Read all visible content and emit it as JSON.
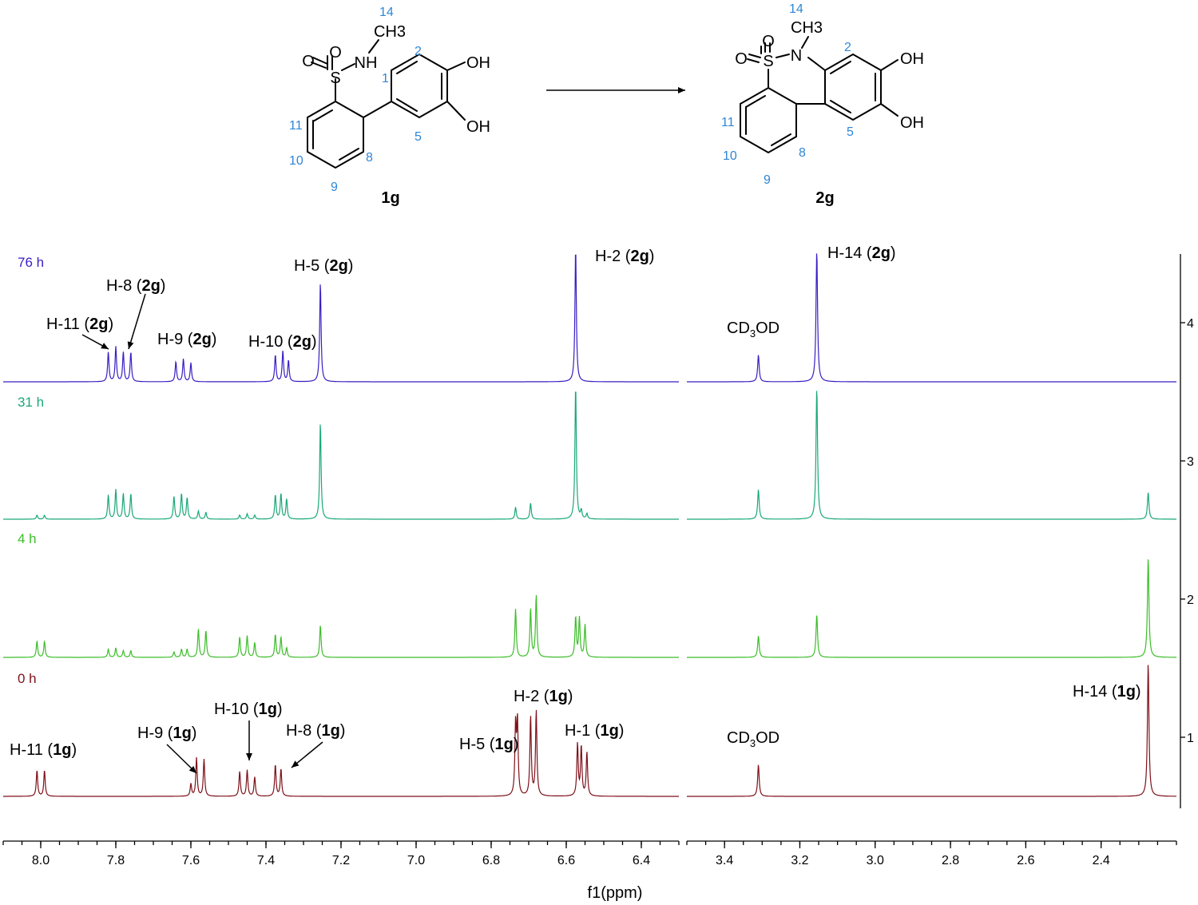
{
  "structures": {
    "reactant": {
      "compound": "1g",
      "atoms": {
        "oxygen": "O",
        "sulfur": "S",
        "nitrogen_h": "NH",
        "methyl": "CH3",
        "hydroxyl_a": "OH",
        "hydroxyl_b": "OH"
      },
      "positions": {
        "p14": "14",
        "p2": "2",
        "p1": "1",
        "p5": "5",
        "p11": "11",
        "p10": "10",
        "p9": "9",
        "p8": "8"
      }
    },
    "product": {
      "compound": "2g",
      "atoms": {
        "oxygen": "O",
        "sulfur": "S",
        "nitrogen": "N",
        "methyl": "CH3",
        "hydroxyl_a": "OH",
        "hydroxyl_b": "OH"
      },
      "positions": {
        "p14": "14",
        "p2": "2",
        "p11": "11",
        "p5": "5",
        "p10": "10",
        "p8": "8",
        "p9": "9"
      }
    }
  },
  "chart_data": {
    "type": "line",
    "subtype": "stacked NMR spectra with broken x-axis",
    "xlabel": "f1(ppm)",
    "x_reversed": true,
    "x_segments": [
      {
        "range": [
          8.1,
          6.3
        ],
        "ticks": [
          8.0,
          7.8,
          7.6,
          7.4,
          7.2,
          7.0,
          6.8,
          6.6,
          6.4
        ]
      },
      {
        "range": [
          3.5,
          2.2
        ],
        "ticks": [
          3.4,
          3.2,
          3.0,
          2.8,
          2.6,
          2.4
        ]
      }
    ],
    "right_axis": {
      "ticks": [
        "1",
        "2",
        "3",
        "4"
      ]
    },
    "series": [
      {
        "name": "76 h",
        "color": "#3a1ec3",
        "peaks": [
          [
            7.82,
            0.22
          ],
          [
            7.8,
            0.26
          ],
          [
            7.78,
            0.22
          ],
          [
            7.76,
            0.22
          ],
          [
            7.64,
            0.15
          ],
          [
            7.62,
            0.17
          ],
          [
            7.6,
            0.14
          ],
          [
            7.375,
            0.2
          ],
          [
            7.355,
            0.23
          ],
          [
            7.34,
            0.16
          ],
          [
            7.255,
            0.74
          ],
          [
            6.575,
            1.0
          ],
          [
            3.31,
            0.2
          ],
          [
            3.155,
            0.98
          ]
        ]
      },
      {
        "name": "31 h",
        "color": "#1aa878",
        "peaks": [
          [
            8.01,
            0.03
          ],
          [
            7.99,
            0.03
          ],
          [
            7.82,
            0.18
          ],
          [
            7.8,
            0.22
          ],
          [
            7.78,
            0.19
          ],
          [
            7.76,
            0.19
          ],
          [
            7.645,
            0.17
          ],
          [
            7.625,
            0.19
          ],
          [
            7.61,
            0.16
          ],
          [
            7.58,
            0.06
          ],
          [
            7.56,
            0.05
          ],
          [
            7.47,
            0.03
          ],
          [
            7.45,
            0.04
          ],
          [
            7.43,
            0.03
          ],
          [
            7.375,
            0.18
          ],
          [
            7.36,
            0.19
          ],
          [
            7.345,
            0.15
          ],
          [
            7.255,
            0.72
          ],
          [
            6.735,
            0.09
          ],
          [
            6.695,
            0.12
          ],
          [
            6.575,
            1.0
          ],
          [
            6.56,
            0.06
          ],
          [
            6.545,
            0.04
          ],
          [
            3.31,
            0.22
          ],
          [
            3.155,
            0.98
          ],
          [
            2.275,
            0.2
          ]
        ]
      },
      {
        "name": "4 h",
        "color": "#3cbd29",
        "peaks": [
          [
            8.01,
            0.12
          ],
          [
            7.99,
            0.12
          ],
          [
            7.82,
            0.06
          ],
          [
            7.8,
            0.07
          ],
          [
            7.78,
            0.05
          ],
          [
            7.76,
            0.05
          ],
          [
            7.645,
            0.04
          ],
          [
            7.625,
            0.06
          ],
          [
            7.61,
            0.06
          ],
          [
            7.58,
            0.21
          ],
          [
            7.56,
            0.2
          ],
          [
            7.47,
            0.15
          ],
          [
            7.45,
            0.16
          ],
          [
            7.43,
            0.11
          ],
          [
            7.375,
            0.17
          ],
          [
            7.36,
            0.15
          ],
          [
            7.345,
            0.07
          ],
          [
            7.255,
            0.24
          ],
          [
            6.735,
            0.36
          ],
          [
            6.695,
            0.36
          ],
          [
            6.68,
            0.46
          ],
          [
            6.575,
            0.3
          ],
          [
            6.565,
            0.29
          ],
          [
            6.55,
            0.24
          ],
          [
            3.31,
            0.16
          ],
          [
            3.155,
            0.32
          ],
          [
            2.275,
            0.74
          ]
        ]
      },
      {
        "name": "0 h",
        "color": "#7e1019",
        "peaks": [
          [
            8.01,
            0.19
          ],
          [
            7.99,
            0.19
          ],
          [
            7.6,
            0.09
          ],
          [
            7.585,
            0.28
          ],
          [
            7.565,
            0.27
          ],
          [
            7.47,
            0.18
          ],
          [
            7.45,
            0.19
          ],
          [
            7.43,
            0.14
          ],
          [
            7.375,
            0.23
          ],
          [
            7.36,
            0.2
          ],
          [
            6.735,
            0.5
          ],
          [
            6.73,
            0.53
          ],
          [
            6.695,
            0.58
          ],
          [
            6.68,
            0.62
          ],
          [
            6.57,
            0.38
          ],
          [
            6.56,
            0.36
          ],
          [
            6.545,
            0.32
          ],
          [
            3.31,
            0.23
          ],
          [
            2.275,
            0.97
          ]
        ]
      }
    ],
    "annotations": {
      "t76": [
        {
          "text": "H-11 (",
          "bold": "2g",
          "end": ")"
        },
        {
          "text": "H-8 (",
          "bold": "2g",
          "end": ")"
        },
        {
          "text": "H-9 (",
          "bold": "2g",
          "end": ")"
        },
        {
          "text": "H-10 (",
          "bold": "2g",
          "end": ")"
        },
        {
          "text": "H-5 (",
          "bold": "2g",
          "end": ")"
        },
        {
          "text": "H-2 (",
          "bold": "2g",
          "end": ")"
        },
        {
          "text": "H-14 (",
          "bold": "2g",
          "end": ")"
        },
        {
          "text": "CD",
          "sub": "3",
          "end": "OD"
        }
      ],
      "t0": [
        {
          "text": "H-11 (",
          "bold": "1g",
          "end": ")"
        },
        {
          "text": "H-9 (",
          "bold": "1g",
          "end": ")"
        },
        {
          "text": "H-10 (",
          "bold": "1g",
          "end": ")"
        },
        {
          "text": "H-8 (",
          "bold": "1g",
          "end": ")"
        },
        {
          "text": "H-5 (",
          "bold": "1g",
          "end": ")"
        },
        {
          "text": "H-2 (",
          "bold": "1g",
          "end": ")"
        },
        {
          "text": "H-1 (",
          "bold": "1g",
          "end": ")"
        },
        {
          "text": "H-14 (",
          "bold": "1g",
          "end": ")"
        },
        {
          "text": "CD",
          "sub": "3",
          "end": "OD"
        }
      ]
    }
  }
}
